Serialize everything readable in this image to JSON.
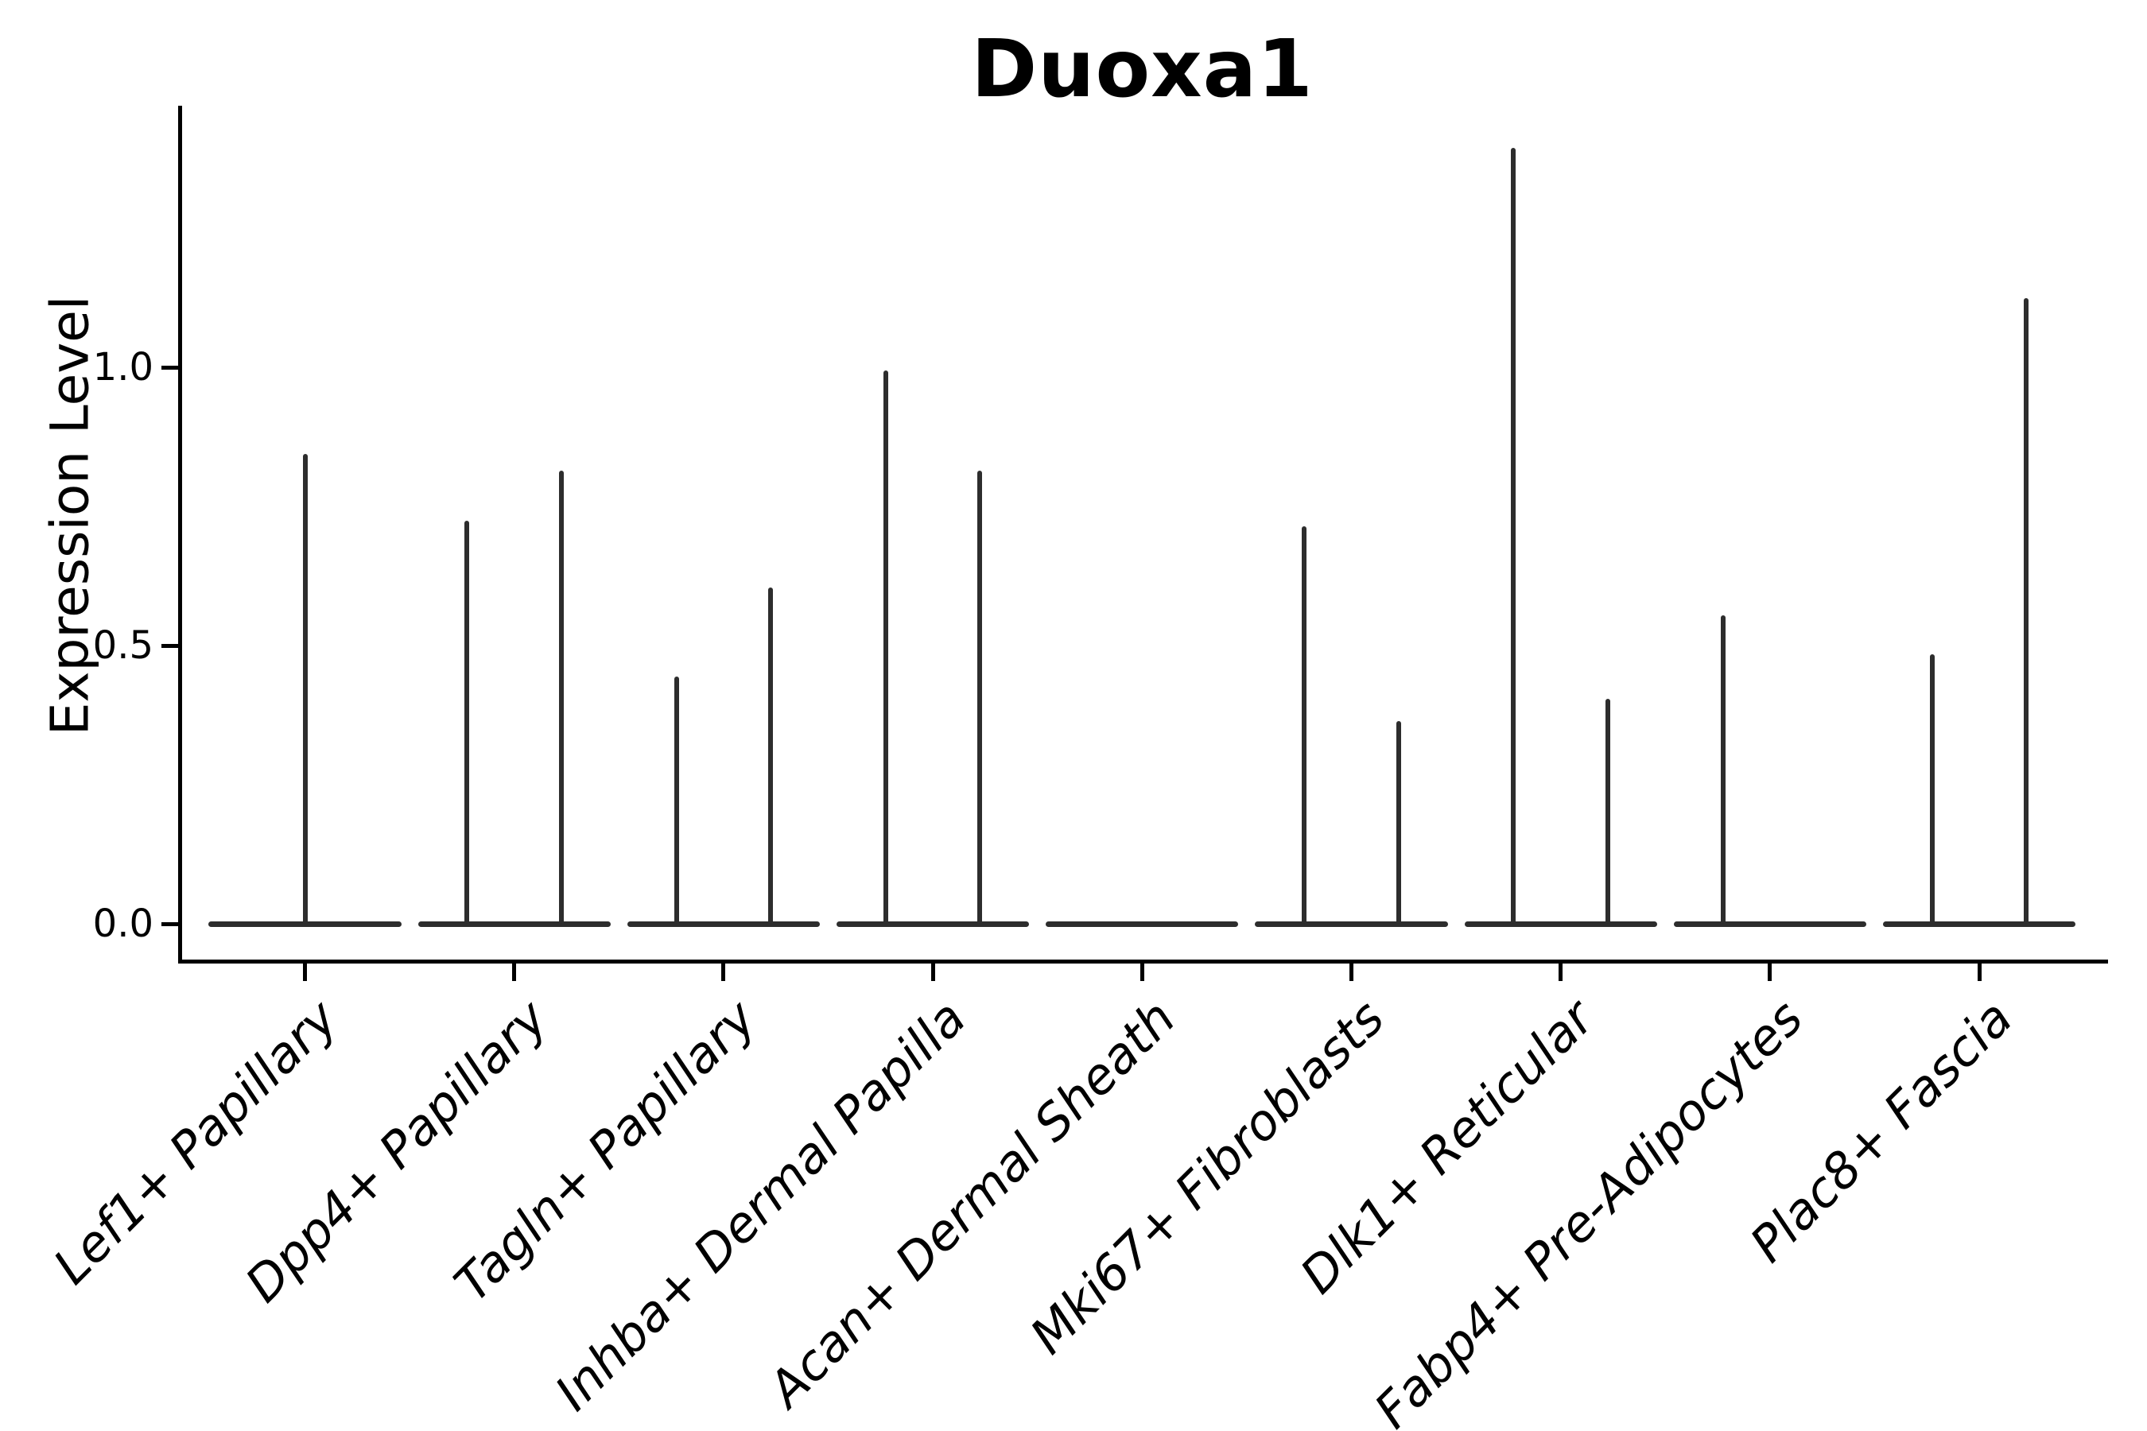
{
  "figure": {
    "title": "Duoxa1",
    "ylabel": "Expression Level"
  },
  "chart_data": {
    "type": "violin",
    "title": "Duoxa1",
    "xlabel": "",
    "ylabel": "Expression Level",
    "ylim": [
      -0.069,
      1.467
    ],
    "yticks": [
      {
        "value": 0.0,
        "label": "0.0"
      },
      {
        "value": 0.5,
        "label": "0.5"
      },
      {
        "value": 1.0,
        "label": "1.0"
      }
    ],
    "grid": false,
    "legend": "none",
    "violin_line_color": "#2d2d2d",
    "axis_color": "#000000",
    "body_halfwidth_frac": 0.46,
    "categories": [
      "Lef1+ Papillary",
      "Dpp4+ Papillary",
      "Tagln+ Papillary",
      "Inhba+ Dermal Papilla",
      "Acan+ Dermal Sheath",
      "Mki67+ Fibroblasts",
      "Dlk1+ Reticular",
      "Fabp4+ Pre-Adipocytes",
      "Plac8+ Fascia"
    ],
    "series": [
      {
        "category": "Lef1+ Papillary",
        "baseline_value": 0.0,
        "spikes": [
          {
            "x_offset_frac": 0.0,
            "value": 0.84
          }
        ]
      },
      {
        "category": "Dpp4+ Papillary",
        "baseline_value": 0.0,
        "spikes": [
          {
            "x_offset_frac": -0.225,
            "value": 0.72
          },
          {
            "x_offset_frac": 0.225,
            "value": 0.81
          }
        ]
      },
      {
        "category": "Tagln+ Papillary",
        "baseline_value": 0.0,
        "spikes": [
          {
            "x_offset_frac": -0.225,
            "value": 0.44
          },
          {
            "x_offset_frac": 0.225,
            "value": 0.6
          }
        ]
      },
      {
        "category": "Inhba+ Dermal Papilla",
        "baseline_value": 0.0,
        "spikes": [
          {
            "x_offset_frac": -0.225,
            "value": 0.99
          },
          {
            "x_offset_frac": 0.225,
            "value": 0.81
          }
        ]
      },
      {
        "category": "Acan+ Dermal Sheath",
        "baseline_value": 0.0,
        "spikes": []
      },
      {
        "category": "Mki67+ Fibroblasts",
        "baseline_value": 0.0,
        "spikes": [
          {
            "x_offset_frac": -0.225,
            "value": 0.71
          },
          {
            "x_offset_frac": 0.225,
            "value": 0.36
          }
        ]
      },
      {
        "category": "Dlk1+ Reticular",
        "baseline_value": 0.0,
        "spikes": [
          {
            "x_offset_frac": -0.225,
            "value": 1.39
          },
          {
            "x_offset_frac": 0.225,
            "value": 0.4
          }
        ]
      },
      {
        "category": "Fabp4+ Pre-Adipocytes",
        "baseline_value": 0.0,
        "spikes": [
          {
            "x_offset_frac": -0.225,
            "value": 0.55
          }
        ]
      },
      {
        "category": "Plac8+ Fascia",
        "baseline_value": 0.0,
        "spikes": [
          {
            "x_offset_frac": -0.225,
            "value": 0.48
          },
          {
            "x_offset_frac": 0.225,
            "value": 1.12
          }
        ]
      }
    ]
  }
}
